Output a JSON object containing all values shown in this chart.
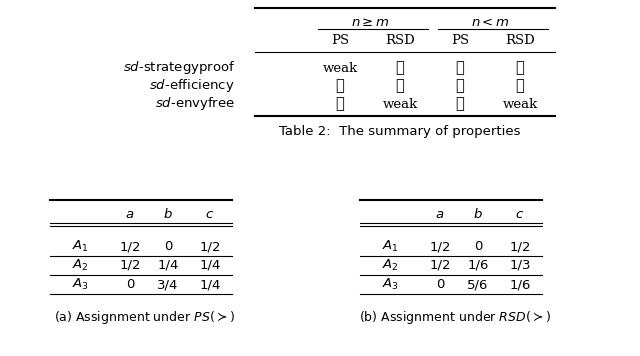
{
  "table2_title": "Table 2:  The summary of properties",
  "table2_rows": [
    [
      "sd-strategyproof",
      "weak",
      "✓",
      "✗",
      "✓"
    ],
    [
      "sd-efficiency",
      "✓",
      "✗",
      "✓",
      "✗"
    ],
    [
      "sd-envyfree",
      "✓",
      "weak",
      "✓",
      "weak"
    ]
  ],
  "tableA_title": "(a) Assignment under $PS(\\succ)$",
  "tableA_header": [
    "",
    "a",
    "b",
    "c"
  ],
  "tableA_rows": [
    [
      "A_1",
      "1/2",
      "0",
      "1/2"
    ],
    [
      "A_2",
      "1/2",
      "1/4",
      "1/4"
    ],
    [
      "A_3",
      "0",
      "3/4",
      "1/4"
    ]
  ],
  "tableB_title": "(b) Assignment under $RSD(\\succ)$",
  "tableB_header": [
    "",
    "a",
    "b",
    "c"
  ],
  "tableB_rows": [
    [
      "A_1",
      "1/2",
      "0",
      "1/2"
    ],
    [
      "A_2",
      "1/2",
      "1/6",
      "1/3"
    ],
    [
      "A_3",
      "0",
      "5/6",
      "1/6"
    ]
  ],
  "bg_color": "#ffffff"
}
